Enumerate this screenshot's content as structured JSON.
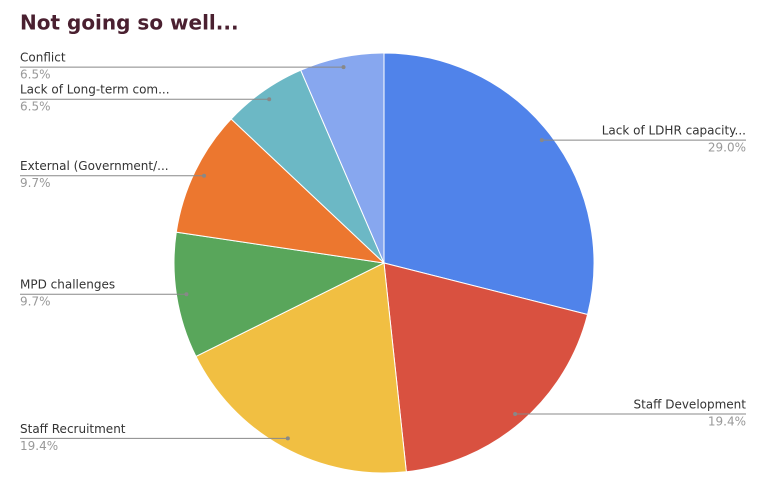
{
  "chart_data": {
    "type": "pie",
    "title": "Not going so well...",
    "categories": [
      "Lack of LDHR capacity...",
      "Staff Development",
      "Staff Recruitment",
      "MPD challenges",
      "External (Government/...",
      "Lack of Long-term com...",
      "Conflict"
    ],
    "values": [
      29.0,
      19.4,
      19.4,
      9.7,
      9.7,
      6.5,
      6.5
    ],
    "value_labels": [
      "29.0%",
      "19.4%",
      "19.4%",
      "9.7%",
      "9.7%",
      "6.5%",
      "6.5%"
    ],
    "colors": [
      "#5083ea",
      "#d95140",
      "#f1bf42",
      "#59a65b",
      "#ec772f",
      "#6cb8c5",
      "#87a7ef"
    ]
  }
}
